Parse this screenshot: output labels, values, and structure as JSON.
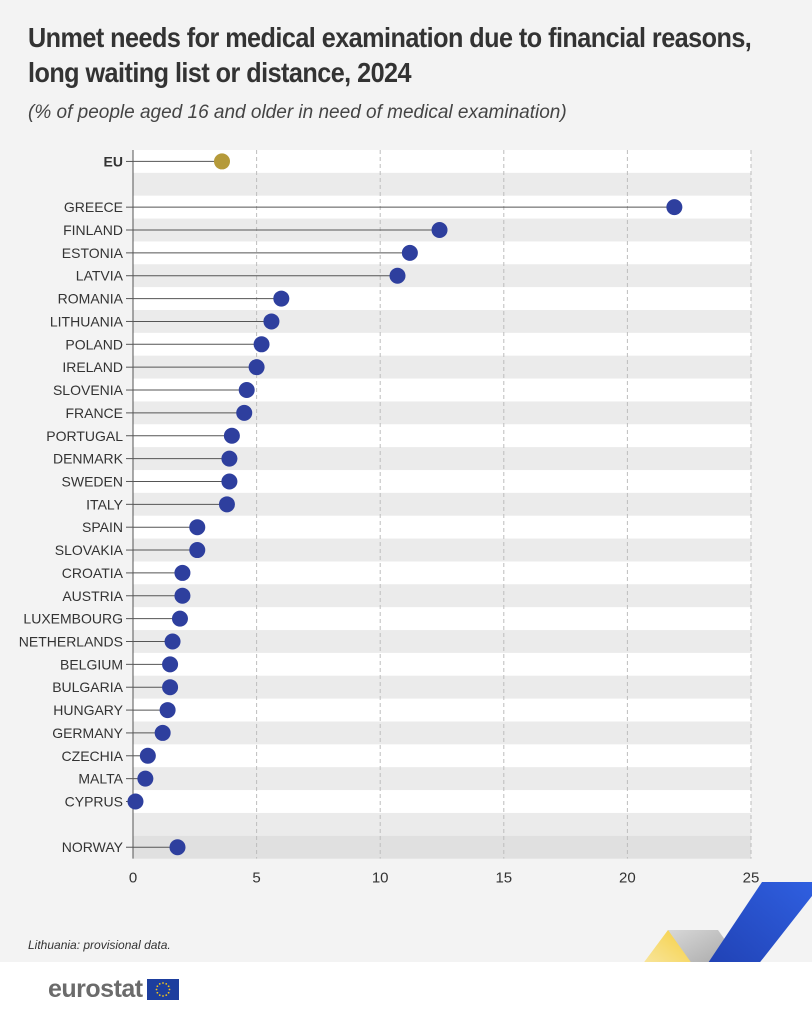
{
  "title": "Unmet needs for medical examination due to financial reasons, long waiting list or distance, 2024",
  "title_line1": "Unmet needs for medical examination due to financial reasons,",
  "title_line2": "long waiting list or distance, 2024",
  "subtitle": "(% of people aged 16 and older in need of medical examination)",
  "footnote": "Lithuania: provisional data.",
  "logo_text": "eurostat",
  "colors": {
    "eu_dot": "#b59a3a",
    "country_dot": "#2e3f9e",
    "stem": "#555555",
    "band_odd": "#ebebeb",
    "band_even": "#ffffff",
    "norway_band": "#e0e0e0"
  },
  "chart_data": {
    "type": "dot",
    "xlim": [
      0,
      25
    ],
    "xticks": [
      "0",
      "5",
      "10",
      "15",
      "20",
      "25"
    ],
    "grid": "vertical dashed",
    "categories": [
      "EU",
      "",
      "GREECE",
      "FINLAND",
      "ESTONIA",
      "LATVIA",
      "ROMANIA",
      "LITHUANIA",
      "POLAND",
      "IRELAND",
      "SLOVENIA",
      "FRANCE",
      "PORTUGAL",
      "DENMARK",
      "SWEDEN",
      "ITALY",
      "SPAIN",
      "SLOVAKIA",
      "CROATIA",
      "AUSTRIA",
      "LUXEMBOURG",
      "NETHERLANDS",
      "BELGIUM",
      "BULGARIA",
      "HUNGARY",
      "GERMANY",
      "CZECHIA",
      "MALTA",
      "CYPRUS",
      "",
      "NORWAY"
    ],
    "values": [
      3.6,
      null,
      21.9,
      12.4,
      11.2,
      10.7,
      6.0,
      5.6,
      5.2,
      5.0,
      4.6,
      4.5,
      4.0,
      3.9,
      3.9,
      3.8,
      2.6,
      2.6,
      2.0,
      2.0,
      1.9,
      1.6,
      1.5,
      1.5,
      1.4,
      1.2,
      0.6,
      0.5,
      0.1,
      null,
      1.8
    ],
    "highlight": [
      "EU"
    ]
  }
}
